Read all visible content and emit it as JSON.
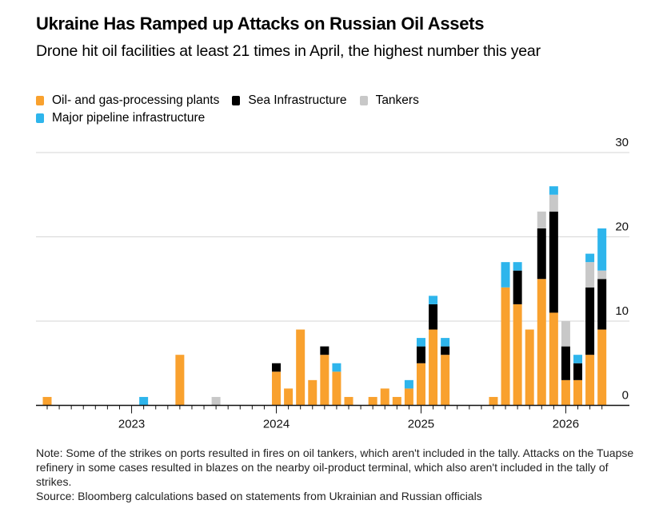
{
  "header": {
    "title": "Ukraine Has Ramped up Attacks on Russian Oil Assets",
    "subtitle": "Drone hit oil facilities at least 21 times in April, the highest number this year"
  },
  "legend": [
    {
      "label": "Oil- and gas-processing plants",
      "color": "#f9a12e"
    },
    {
      "label": "Sea Infrastructure",
      "color": "#000000"
    },
    {
      "label": "Tankers",
      "color": "#c8c8c8"
    },
    {
      "label": "Major pipeline infrastructure",
      "color": "#2eb5ec"
    }
  ],
  "footer": {
    "note": "Note: Some of the strikes on ports resulted in fires on oil tankers, which aren't included in the tally. Attacks on the Tuapse refinery in some cases resulted in blazes on the nearby oil-product terminal, which also aren't included in the tally of strikes.",
    "source": "Source: Bloomberg calculations based on statements from Ukrainian and Russian officials"
  },
  "chart_data": {
    "type": "bar",
    "stacked": true,
    "title": "Ukraine Has Ramped up Attacks on Russian Oil Assets",
    "subtitle": "Drone hit oil facilities at least 21 times in April, the highest number this year",
    "xlabel": "",
    "ylabel": "",
    "ylim": [
      0,
      30
    ],
    "yticks": [
      "0",
      "10",
      "20",
      "30"
    ],
    "ytick_values": [
      0,
      10,
      20,
      30
    ],
    "y_axis_side": "right",
    "grid": true,
    "legend_position": "top-left",
    "x_tick_labels": [
      {
        "label": "2023",
        "month": "2023-01"
      },
      {
        "label": "2024",
        "month": "2024-01"
      },
      {
        "label": "2025",
        "month": "2025-01"
      },
      {
        "label": "2026",
        "month": "2026-01"
      }
    ],
    "categories": [
      "2022-06",
      "2022-07",
      "2022-08",
      "2022-09",
      "2022-10",
      "2022-11",
      "2022-12",
      "2023-01",
      "2023-02",
      "2023-03",
      "2023-04",
      "2023-05",
      "2023-06",
      "2023-07",
      "2023-08",
      "2023-09",
      "2023-10",
      "2023-11",
      "2023-12",
      "2024-01",
      "2024-02",
      "2024-03",
      "2024-04",
      "2024-05",
      "2024-06",
      "2024-07",
      "2024-08",
      "2024-09",
      "2024-10",
      "2024-11",
      "2024-12",
      "2025-01",
      "2025-02",
      "2025-03",
      "2025-04",
      "2025-05",
      "2025-06",
      "2025-07",
      "2025-08",
      "2025-09",
      "2025-10",
      "2025-11",
      "2025-12",
      "2026-01",
      "2026-02",
      "2026-03",
      "2026-04"
    ],
    "series": [
      {
        "name": "Oil- and gas-processing plants",
        "color": "#f9a12e",
        "values": [
          1,
          0,
          0,
          0,
          0,
          0,
          0,
          0,
          0,
          0,
          0,
          6,
          0,
          0,
          0,
          0,
          0,
          0,
          0,
          4,
          2,
          9,
          3,
          6,
          4,
          1,
          0,
          1,
          2,
          1,
          2,
          5,
          9,
          6,
          0,
          0,
          0,
          1,
          14,
          12,
          9,
          15,
          11,
          3,
          3,
          6,
          9
        ]
      },
      {
        "name": "Sea Infrastructure",
        "color": "#000000",
        "values": [
          0,
          0,
          0,
          0,
          0,
          0,
          0,
          0,
          0,
          0,
          0,
          0,
          0,
          0,
          0,
          0,
          0,
          0,
          0,
          1,
          0,
          0,
          0,
          1,
          0,
          0,
          0,
          0,
          0,
          0,
          0,
          2,
          3,
          1,
          0,
          0,
          0,
          0,
          0,
          4,
          0,
          6,
          12,
          4,
          2,
          8,
          6
        ]
      },
      {
        "name": "Tankers",
        "color": "#c8c8c8",
        "values": [
          0,
          0,
          0,
          0,
          0,
          0,
          0,
          0,
          0,
          0,
          0,
          0,
          0,
          0,
          1,
          0,
          0,
          0,
          0,
          0,
          0,
          0,
          0,
          0,
          0,
          0,
          0,
          0,
          0,
          0,
          0,
          0,
          0,
          0,
          0,
          0,
          0,
          0,
          0,
          0,
          0,
          2,
          2,
          3,
          0,
          3,
          1
        ]
      },
      {
        "name": "Major pipeline infrastructure",
        "color": "#2eb5ec",
        "values": [
          0,
          0,
          0,
          0,
          0,
          0,
          0,
          0,
          1,
          0,
          0,
          0,
          0,
          0,
          0,
          0,
          0,
          0,
          0,
          0,
          0,
          0,
          0,
          0,
          1,
          0,
          0,
          0,
          0,
          0,
          1,
          1,
          1,
          1,
          0,
          0,
          0,
          0,
          3,
          1,
          0,
          0,
          1,
          0,
          1,
          1,
          5
        ]
      }
    ]
  }
}
